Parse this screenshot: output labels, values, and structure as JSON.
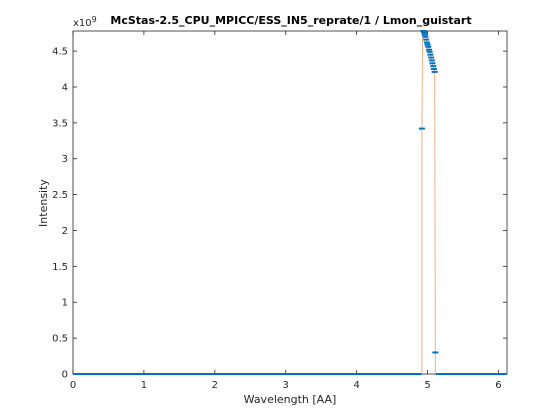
{
  "chart_data": {
    "type": "line",
    "title": "McStas-2.5_CPU_MPICC/ESS_IN5_reprate/1 / Lmon_guistart",
    "xlabel": "Wavelength [AA]",
    "ylabel": "Intensity",
    "exponent_label": "x10",
    "exponent_power": "9",
    "xlim": [
      0,
      6.12
    ],
    "ylim": [
      0,
      4780000000.0
    ],
    "x_ticks": [
      0,
      1,
      2,
      3,
      4,
      5,
      6
    ],
    "x_tick_labels": [
      "0",
      "1",
      "2",
      "3",
      "4",
      "5",
      "6"
    ],
    "y_ticks": [
      0,
      500000000.0,
      1000000000.0,
      1500000000.0,
      2000000000.0,
      2500000000.0,
      3000000000.0,
      3500000000.0,
      4000000000.0,
      4500000000.0
    ],
    "y_tick_labels": [
      "0",
      "0.5",
      "1",
      "1.5",
      "2",
      "2.5",
      "3",
      "3.5",
      "4",
      "4.5"
    ],
    "grid": false,
    "colors": {
      "line": "#f0b08a",
      "markers": "#0072bd",
      "baseline": "#0072bd"
    },
    "series": [
      {
        "x": [
          4.92,
          4.93,
          4.94,
          4.95,
          4.96,
          4.97,
          4.98,
          4.99,
          5.0,
          5.01,
          5.02,
          5.03,
          5.04,
          5.05,
          5.06,
          5.07,
          5.08,
          5.09,
          5.1,
          5.11
        ],
        "y": [
          3420000000.0,
          4800000000.0,
          4780000000.0,
          4760000000.0,
          4730000000.0,
          4700000000.0,
          4660000000.0,
          4620000000.0,
          4590000000.0,
          4560000000.0,
          4520000000.0,
          4490000000.0,
          4450000000.0,
          4410000000.0,
          4370000000.0,
          4330000000.0,
          4290000000.0,
          4250000000.0,
          4210000000.0,
          300000000.0
        ]
      }
    ]
  }
}
